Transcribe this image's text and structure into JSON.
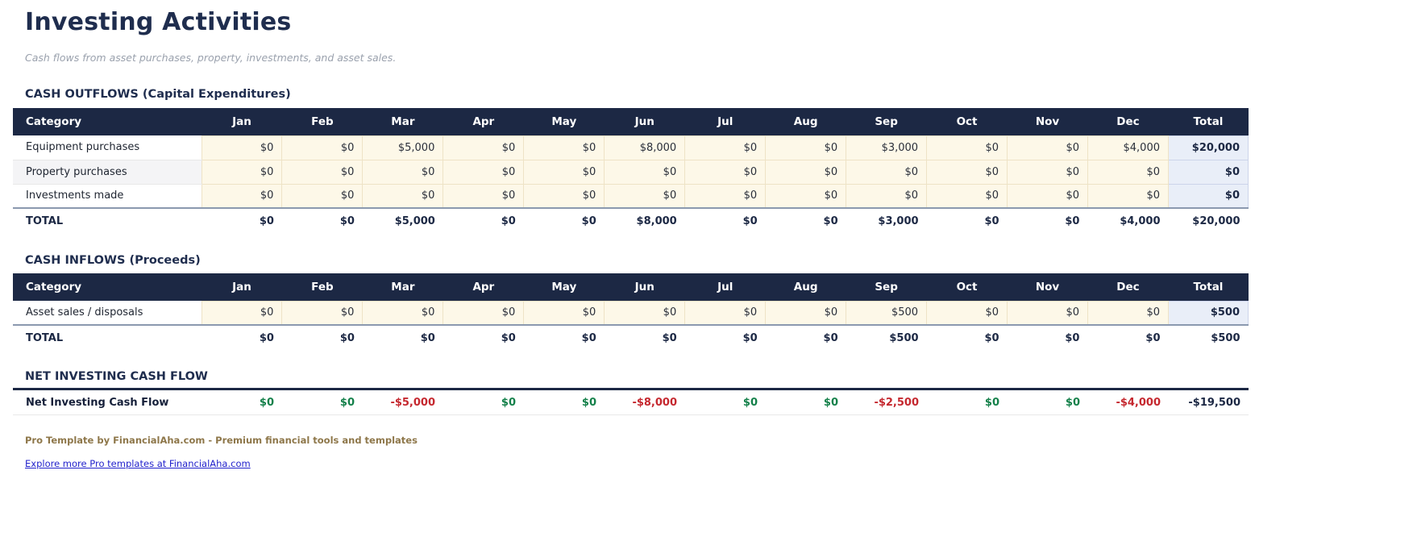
{
  "page": {
    "title": "Investing Activities",
    "subtitle": "Cash flows from asset purchases, property, investments, and asset sales."
  },
  "category_header": "Category",
  "total_header": "Total",
  "months": [
    "Jan",
    "Feb",
    "Mar",
    "Apr",
    "May",
    "Jun",
    "Jul",
    "Aug",
    "Sep",
    "Oct",
    "Nov",
    "Dec"
  ],
  "outflows": {
    "section_title": "CASH OUTFLOWS (Capital Expenditures)",
    "rows": [
      {
        "label": "Equipment purchases",
        "values": [
          "$0",
          "$0",
          "$5,000",
          "$0",
          "$0",
          "$8,000",
          "$0",
          "$0",
          "$3,000",
          "$0",
          "$0",
          "$4,000"
        ],
        "total": "$20,000"
      },
      {
        "label": "Property purchases",
        "values": [
          "$0",
          "$0",
          "$0",
          "$0",
          "$0",
          "$0",
          "$0",
          "$0",
          "$0",
          "$0",
          "$0",
          "$0"
        ],
        "total": "$0"
      },
      {
        "label": "Investments made",
        "values": [
          "$0",
          "$0",
          "$0",
          "$0",
          "$0",
          "$0",
          "$0",
          "$0",
          "$0",
          "$0",
          "$0",
          "$0"
        ],
        "total": "$0"
      }
    ],
    "total_row": {
      "label": "TOTAL",
      "values": [
        "$0",
        "$0",
        "$5,000",
        "$0",
        "$0",
        "$8,000",
        "$0",
        "$0",
        "$3,000",
        "$0",
        "$0",
        "$4,000"
      ],
      "total": "$20,000"
    }
  },
  "inflows": {
    "section_title": "CASH INFLOWS (Proceeds)",
    "rows": [
      {
        "label": "Asset sales / disposals",
        "values": [
          "$0",
          "$0",
          "$0",
          "$0",
          "$0",
          "$0",
          "$0",
          "$0",
          "$500",
          "$0",
          "$0",
          "$0"
        ],
        "total": "$500"
      }
    ],
    "total_row": {
      "label": "TOTAL",
      "values": [
        "$0",
        "$0",
        "$0",
        "$0",
        "$0",
        "$0",
        "$0",
        "$0",
        "$500",
        "$0",
        "$0",
        "$0"
      ],
      "total": "$500"
    }
  },
  "net": {
    "section_title": "NET INVESTING CASH FLOW",
    "row_label": "Net Investing Cash Flow",
    "values": [
      {
        "text": "$0",
        "state": "positive"
      },
      {
        "text": "$0",
        "state": "positive"
      },
      {
        "text": "-$5,000",
        "state": "negative"
      },
      {
        "text": "$0",
        "state": "positive"
      },
      {
        "text": "$0",
        "state": "positive"
      },
      {
        "text": "-$8,000",
        "state": "negative"
      },
      {
        "text": "$0",
        "state": "positive"
      },
      {
        "text": "$0",
        "state": "positive"
      },
      {
        "text": "-$2,500",
        "state": "negative"
      },
      {
        "text": "$0",
        "state": "positive"
      },
      {
        "text": "$0",
        "state": "positive"
      },
      {
        "text": "-$4,000",
        "state": "negative"
      }
    ],
    "total": "-$19,500"
  },
  "footer": {
    "credit": "Pro Template by FinancialAha.com - Premium financial tools and templates",
    "link": "Explore more Pro templates at FinancialAha.com"
  },
  "colors": {
    "header_bg": "#1c2844",
    "title_navy": "#1f2d4e",
    "cell_cream": "#fdf8e8",
    "total_col_blue": "#e9eef8",
    "positive_green": "#14804a",
    "negative_red": "#c5282f",
    "footer_brown": "#8e774a",
    "link_blue": "#2222cc"
  }
}
